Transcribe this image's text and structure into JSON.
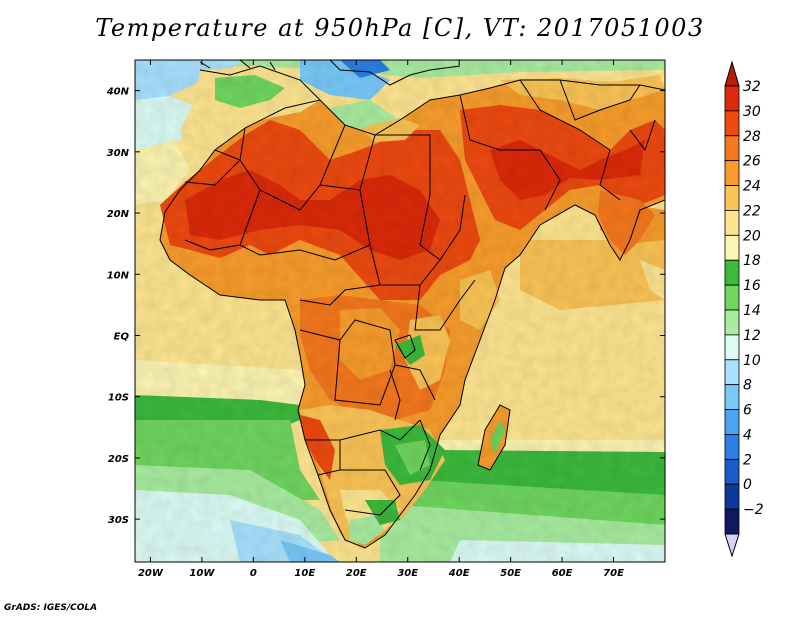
{
  "title": "Temperature at 950hPa [C], VT: 2017051003",
  "credit": "GrADS: IGES/COLA",
  "map": {
    "lon_range": [
      -23,
      80
    ],
    "lat_range": [
      -37,
      45
    ],
    "lon_ticks": [
      {
        "value": -20,
        "label": "20W"
      },
      {
        "value": -10,
        "label": "10W"
      },
      {
        "value": 0,
        "label": "0"
      },
      {
        "value": 10,
        "label": "10E"
      },
      {
        "value": 20,
        "label": "20E"
      },
      {
        "value": 30,
        "label": "30E"
      },
      {
        "value": 40,
        "label": "40E"
      },
      {
        "value": 50,
        "label": "50E"
      },
      {
        "value": 60,
        "label": "60E"
      },
      {
        "value": 70,
        "label": "70E"
      }
    ],
    "lat_ticks": [
      {
        "value": 40,
        "label": "40N"
      },
      {
        "value": 30,
        "label": "30N"
      },
      {
        "value": 20,
        "label": "20N"
      },
      {
        "value": 10,
        "label": "10N"
      },
      {
        "value": 0,
        "label": "EQ"
      },
      {
        "value": -10,
        "label": "10S"
      },
      {
        "value": -20,
        "label": "20S"
      },
      {
        "value": -30,
        "label": "30S"
      }
    ]
  },
  "colorbar": {
    "levels": [
      {
        "label": "32",
        "color": "#dc2a0a"
      },
      {
        "label": "30",
        "color": "#ee4a10"
      },
      {
        "label": "28",
        "color": "#f5781e"
      },
      {
        "label": "26",
        "color": "#f89d2c"
      },
      {
        "label": "24",
        "color": "#fbc456"
      },
      {
        "label": "22",
        "color": "#fde590"
      },
      {
        "label": "20",
        "color": "#fdf5b2"
      },
      {
        "label": "18",
        "color": "#3cba3c"
      },
      {
        "label": "16",
        "color": "#6fd65e"
      },
      {
        "label": "14",
        "color": "#a8eca0"
      },
      {
        "label": "12",
        "color": "#dcfbf5"
      },
      {
        "label": "10",
        "color": "#a8e2ff"
      },
      {
        "label": "8",
        "color": "#78c8f8"
      },
      {
        "label": "6",
        "color": "#4aa4f0"
      },
      {
        "label": "4",
        "color": "#2a80e4"
      },
      {
        "label": "2",
        "color": "#1a5ccc"
      },
      {
        "label": "0",
        "color": "#0c3a9c"
      },
      {
        "label": "−2",
        "color": "#10195e"
      }
    ],
    "top_triangle_color": "#b81e06",
    "bottom_triangle_color": "#d8d4f8"
  }
}
